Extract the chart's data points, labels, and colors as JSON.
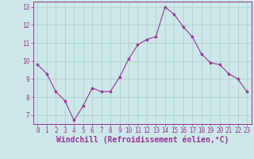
{
  "x": [
    0,
    1,
    2,
    3,
    4,
    5,
    6,
    7,
    8,
    9,
    10,
    11,
    12,
    13,
    14,
    15,
    16,
    17,
    18,
    19,
    20,
    21,
    22,
    23
  ],
  "y": [
    9.8,
    9.3,
    8.3,
    7.8,
    6.7,
    7.5,
    8.5,
    8.3,
    8.3,
    9.1,
    10.1,
    10.9,
    11.2,
    11.35,
    13.0,
    12.6,
    11.9,
    11.35,
    10.4,
    9.9,
    9.8,
    9.3,
    9.0,
    8.3
  ],
  "line_color": "#993399",
  "marker": "*",
  "marker_size": 3,
  "background_color": "#cce8e8",
  "grid_color": "#aacccc",
  "xlabel": "Windchill (Refroidissement éolien,°C)",
  "xlabel_color": "#993399",
  "ylim": [
    6.5,
    13.3
  ],
  "xlim": [
    -0.5,
    23.5
  ],
  "yticks": [
    7,
    8,
    9,
    10,
    11,
    12,
    13
  ],
  "xticks": [
    0,
    1,
    2,
    3,
    4,
    5,
    6,
    7,
    8,
    9,
    10,
    11,
    12,
    13,
    14,
    15,
    16,
    17,
    18,
    19,
    20,
    21,
    22,
    23
  ],
  "tick_color": "#993399",
  "tick_fontsize": 5.5,
  "xlabel_fontsize": 7.0,
  "spine_color": "#993399",
  "line_width": 0.8
}
